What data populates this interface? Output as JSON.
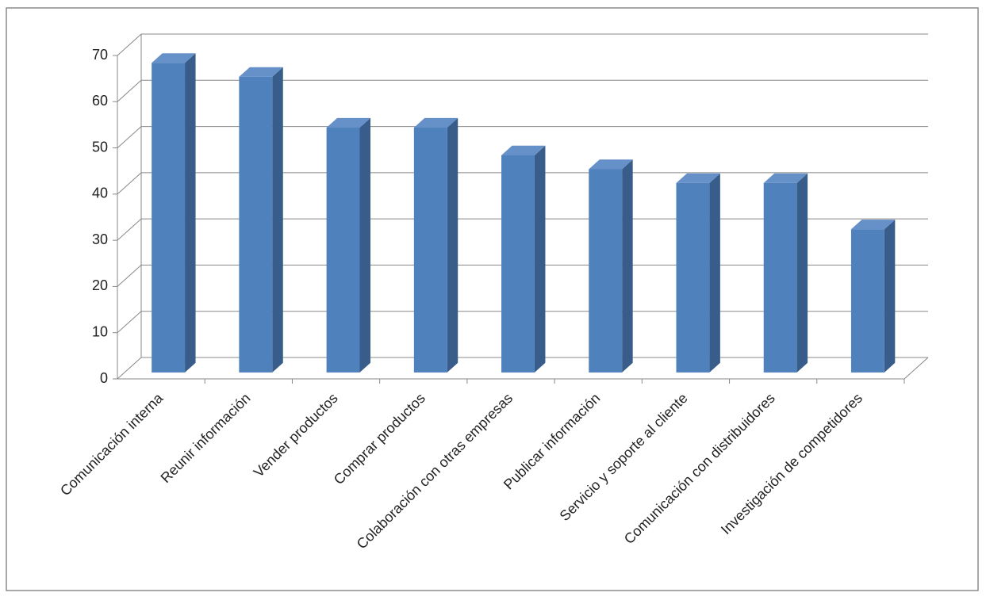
{
  "chart_data": {
    "type": "bar3d",
    "categories": [
      "Comunicación interna",
      "Reunir información",
      "Vender productos",
      "Comprar productos",
      "Colaboración con otras empresas",
      "Publicar información",
      "Servicio y soporte al cliente",
      "Comunicación con distribuidores",
      "Investigación de competidores"
    ],
    "values": [
      67,
      64,
      53,
      53,
      47,
      44,
      41,
      41,
      31
    ],
    "color": "#4f81bd",
    "ylim": [
      0,
      70
    ],
    "yticks": [
      0,
      10,
      20,
      30,
      40,
      50,
      60,
      70
    ],
    "grid": true
  }
}
